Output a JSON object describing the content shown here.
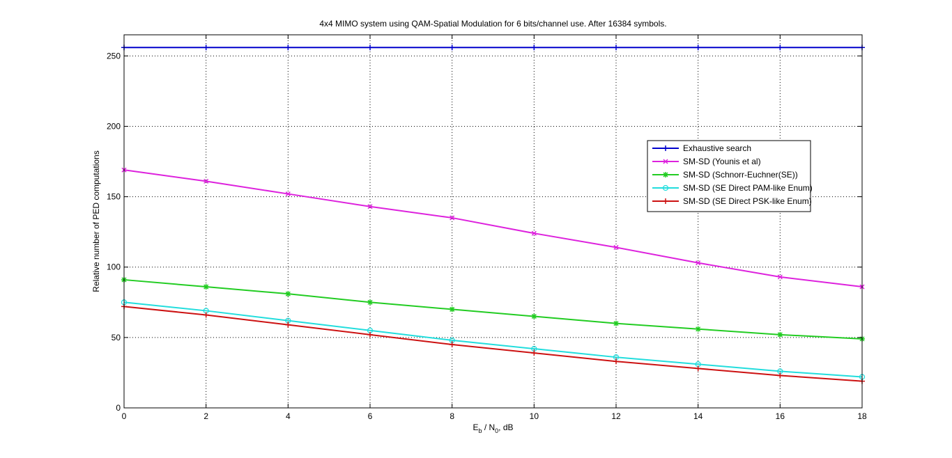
{
  "chart_data": {
    "type": "line",
    "title": "4x4 MIMO system using QAM-Spatial Modulation for 6 bits/channel use. After 16384 symbols.",
    "xlabel": {
      "main": "E",
      "sub1": "b",
      "mid": " / N",
      "sub2": "0",
      "tail": ", dB"
    },
    "ylabel": "Relative number of PED computations",
    "xlim": [
      0,
      18
    ],
    "ylim": [
      0,
      265
    ],
    "xticks": [
      0,
      2,
      4,
      6,
      8,
      10,
      12,
      14,
      16,
      18
    ],
    "yticks": [
      0,
      50,
      100,
      150,
      200,
      250
    ],
    "grid": true,
    "legend_position": "right",
    "x": [
      0,
      2,
      4,
      6,
      8,
      10,
      12,
      14,
      16,
      18
    ],
    "series": [
      {
        "name": "Exhaustive search",
        "color": "#0000cc",
        "marker": "plus",
        "values": [
          256,
          256,
          256,
          256,
          256,
          256,
          256,
          256,
          256,
          256
        ]
      },
      {
        "name": "SM-SD (Younis et al)",
        "color": "#dd22dd",
        "marker": "x",
        "values": [
          169,
          161,
          152,
          143,
          135,
          124,
          114,
          103,
          93,
          86
        ]
      },
      {
        "name": "SM-SD (Schnorr-Euchner(SE))",
        "color": "#22cc22",
        "marker": "star",
        "values": [
          91,
          86,
          81,
          75,
          70,
          65,
          60,
          56,
          52,
          49
        ]
      },
      {
        "name": "SM-SD (SE Direct PAM-like Enum)",
        "color": "#22dddd",
        "marker": "circle",
        "values": [
          75,
          69,
          62,
          55,
          48,
          42,
          36,
          31,
          26,
          22
        ]
      },
      {
        "name": "SM-SD (SE Direct PSK-like Enum)",
        "color": "#cc1111",
        "marker": "plus",
        "values": [
          72,
          66,
          59,
          52,
          45,
          39,
          33,
          28,
          23,
          19
        ]
      }
    ]
  }
}
